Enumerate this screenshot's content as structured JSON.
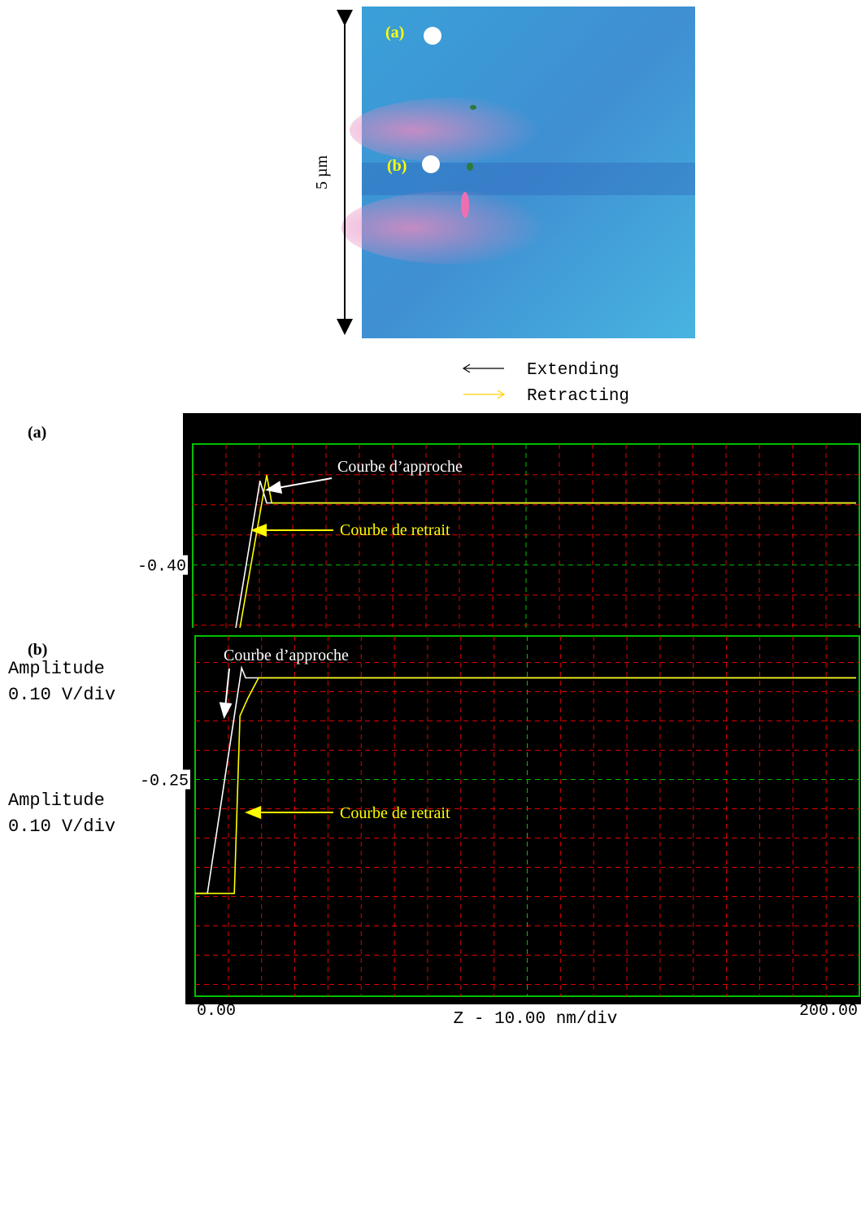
{
  "image": {
    "scale_label": "5 µm",
    "points": [
      "(a)",
      "(b)"
    ]
  },
  "chart_data": [
    {
      "type": "line",
      "title": "(a)",
      "ylabel": [
        "Amplitude",
        "0.10 V/div"
      ],
      "xlabel": "Z - 10.00 nm/div",
      "xlim": [
        0,
        200
      ],
      "xticks": [
        {
          "value": 0,
          "label": "0.00"
        },
        {
          "value": 200,
          "label": "200.00"
        }
      ],
      "ylim": [
        -1.1,
        0.0
      ],
      "yticks": [
        {
          "value": -0.4,
          "label": "-0.40"
        }
      ],
      "grid": true,
      "series": [
        {
          "name": "Extending",
          "color": "#ffffff",
          "x": [
            0,
            7.6,
            20.2,
            22.2,
            199
          ],
          "values": [
            -0.965,
            -0.965,
            -0.122,
            -0.195,
            -0.195
          ]
        },
        {
          "name": "Retracting",
          "color": "#ffff00",
          "x": [
            0,
            8.5,
            22.2,
            23.7,
            199
          ],
          "values": [
            -0.965,
            -0.965,
            -0.103,
            -0.195,
            -0.195
          ]
        }
      ],
      "annotations": [
        {
          "text": "Courbe d’approche",
          "color": "#ffffff"
        },
        {
          "text": "Courbe de retrait",
          "color": "#ffff00"
        }
      ]
    },
    {
      "type": "line",
      "title": "(b)",
      "ylabel": [
        "Amplitude",
        "0.10 V/div"
      ],
      "xlabel": "Z - 10.00 nm/div",
      "xlim": [
        0,
        200
      ],
      "xticks": [
        {
          "value": 0,
          "label": "0.00"
        },
        {
          "value": 200,
          "label": "200.00"
        }
      ],
      "ylim": [
        -0.99,
        0.24
      ],
      "yticks": [
        {
          "value": -0.25,
          "label": "-0.25"
        }
      ],
      "grid": true,
      "series": [
        {
          "color": "#ffffff",
          "x": [
            0,
            3.7,
            14.0,
            15.2,
            199
          ],
          "values": [
            -0.639,
            -0.639,
            0.131,
            0.097,
            0.097
          ]
        },
        {
          "color": "#ffff00",
          "x": [
            0,
            11.8,
            13.5,
            15.9,
            19.1,
            199
          ],
          "values": [
            -0.639,
            -0.639,
            -0.033,
            0.028,
            0.097,
            0.097
          ]
        }
      ],
      "annotations": [
        {
          "text": "Courbe d’approche",
          "color": "#ffffff"
        },
        {
          "text": "Courbe de retrait",
          "color": "#ffff00"
        }
      ]
    }
  ]
}
